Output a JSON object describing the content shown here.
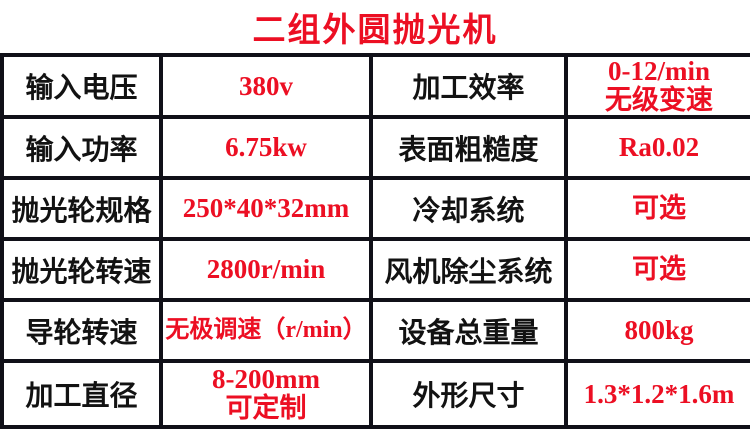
{
  "page": {
    "title": "二组外圆抛光机"
  },
  "colors": {
    "accent_red": "#ec0f23",
    "label_black": "#121212",
    "border_black": "#101018",
    "background": "#ffffff"
  },
  "spec_table": {
    "rows": [
      {
        "c0": "输入电压",
        "c1": "380v",
        "c2": "加工效率",
        "c3": "0-12/min\n无级变速"
      },
      {
        "c0": "输入功率",
        "c1": "6.75kw",
        "c2": "表面粗糙度",
        "c3": "Ra0.02"
      },
      {
        "c0": "抛光轮规格",
        "c1": "250*40*32mm",
        "c2": "冷却系统",
        "c3": "可选"
      },
      {
        "c0": "抛光轮转速",
        "c1": "2800r/min",
        "c2": "风机除尘系统",
        "c3": "可选"
      },
      {
        "c0": "导轮转速",
        "c1": "无极调速（r/min）",
        "c2": "设备总重量",
        "c3": "800kg"
      },
      {
        "c0": "加工直径",
        "c1": "8-200mm\n可定制",
        "c2": "外形尺寸",
        "c3": "1.3*1.2*1.6m"
      }
    ]
  }
}
